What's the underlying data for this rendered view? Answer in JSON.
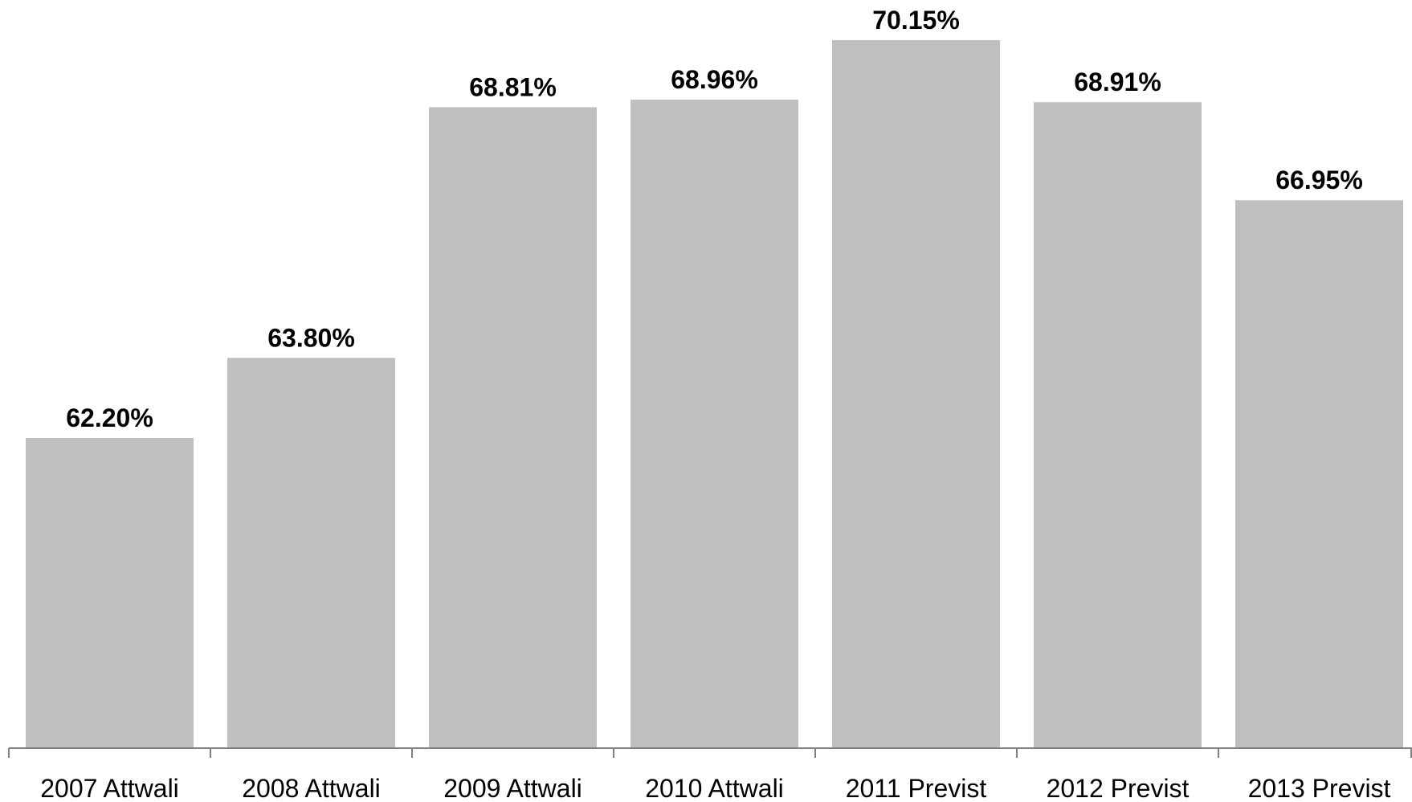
{
  "chart_data": {
    "type": "bar",
    "categories": [
      "2007 Attwali",
      "2008 Attwali",
      "2009 Attwali",
      "2010 Attwali",
      "2011 Previst",
      "2012 Previst",
      "2013 Previst"
    ],
    "values": [
      62.2,
      63.8,
      68.81,
      68.96,
      70.15,
      68.91,
      66.95
    ],
    "data_labels": [
      "62.20%",
      "63.80%",
      "68.81%",
      "68.96%",
      "70.15%",
      "68.91%",
      "66.95%"
    ],
    "title": "",
    "xlabel": "",
    "ylabel": "",
    "ylim": [
      56.0,
      70.15
    ],
    "grid": false,
    "legend": "none",
    "bar_color": "#bfbfbf",
    "axis_color": "#808080"
  }
}
